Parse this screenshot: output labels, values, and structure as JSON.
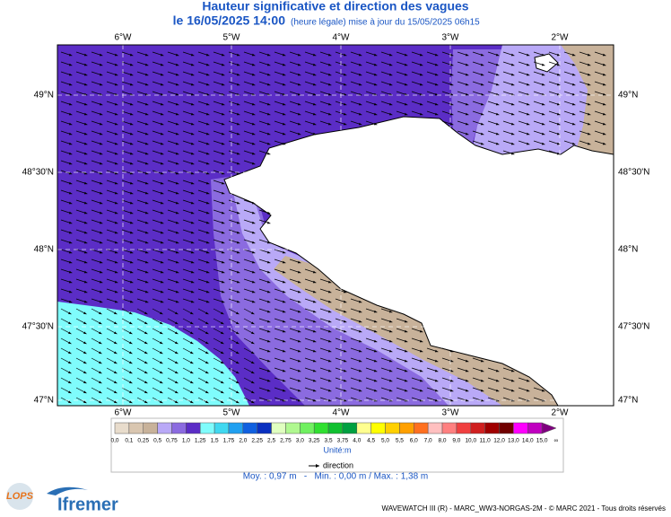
{
  "header": {
    "title": "Hauteur significative et direction des vagues",
    "date": "le 16/05/2025 14:00",
    "update": "(heure légale) mise à jour du 15/05/2025 06h15"
  },
  "map": {
    "lon_labels": [
      "6°W",
      "5°W",
      "4°W",
      "3°W",
      "2°W"
    ],
    "lat_labels": [
      "49°N",
      "48°30'N",
      "48°N",
      "47°30'N",
      "47°N"
    ]
  },
  "legend": {
    "labels": [
      "0,0",
      "0,1",
      "0,25",
      "0,5",
      "0,75",
      "1,0",
      "1,25",
      "1,5",
      "1,75",
      "2,0",
      "2,25",
      "2,5",
      "2,75",
      "3,0",
      "3,25",
      "3,5",
      "3,75",
      "4,0",
      "4,5",
      "5,0",
      "5,5",
      "6,0",
      "7,0",
      "8,0",
      "9,0",
      "10,0",
      "11,0",
      "12,0",
      "13,0",
      "14,0",
      "15,0",
      "∞"
    ],
    "colors": [
      "#e8dccc",
      "#d9c6b0",
      "#c8b29a",
      "#b9a9f7",
      "#8b6be0",
      "#5b2dc6",
      "#7ffcfc",
      "#40d8f0",
      "#20a0f0",
      "#1060e0",
      "#0a30c0",
      "#e0ffc0",
      "#b0f890",
      "#70f060",
      "#30e030",
      "#10c030",
      "#00a040",
      "#ffff90",
      "#ffff00",
      "#ffd000",
      "#ffa000",
      "#ff7020",
      "#ffc0c0",
      "#ff8080",
      "#f04040",
      "#d02020",
      "#a00000",
      "#700000",
      "#ff00ff",
      "#c000c0",
      "#800080"
    ],
    "unit": "Unité:m",
    "direction": "direction",
    "stats": "Moy. : 0,97 m   -   Min. : 0,00 m / Max. : 1,38 m"
  },
  "footer": {
    "lops": "LOPS",
    "ifremer": "Ifremer",
    "credit": "WAVEWATCH III (R) - MARC_WW3-NORGAS-2M - © MARC 2021 - Tous droits réservés"
  }
}
